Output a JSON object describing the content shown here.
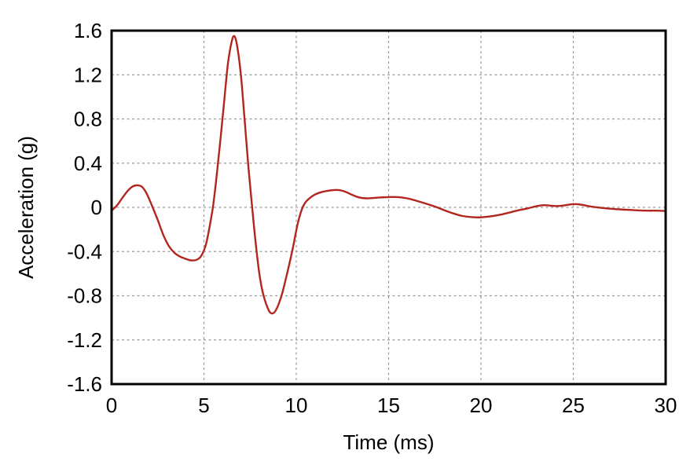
{
  "figure": {
    "background": "#ffffff",
    "frame_color": "#000000",
    "grid_color": "#999999",
    "line_color": "#b2261e"
  },
  "chart_data": {
    "type": "line",
    "title": "",
    "xlabel": "Time (ms)",
    "ylabel": "Acceleration (g)",
    "xlim": [
      0,
      30
    ],
    "ylim": [
      -1.6,
      1.6
    ],
    "grid": {
      "show": true,
      "style": "dashed",
      "color": "#999999"
    },
    "legend": {
      "show": false
    },
    "xticks": {
      "values": [
        0,
        5,
        10,
        15,
        20,
        25,
        30
      ],
      "labels": [
        "0",
        "5",
        "10",
        "15",
        "20",
        "25",
        "30"
      ]
    },
    "yticks": {
      "values": [
        -1.6,
        -1.2,
        -0.8,
        -0.4,
        0,
        0.4,
        0.8,
        1.2,
        1.6
      ],
      "labels": [
        "-1.6",
        "-1.2",
        "-0.8",
        "-0.4",
        "0",
        "0.4",
        "0.8",
        "1.2",
        "1.6"
      ]
    },
    "series": [
      {
        "name": "acceleration",
        "color": "#b2261e",
        "points": [
          [
            0,
            -0.03
          ],
          [
            0.3,
            0.02
          ],
          [
            0.6,
            0.09
          ],
          [
            0.9,
            0.155
          ],
          [
            1.15,
            0.19
          ],
          [
            1.4,
            0.2
          ],
          [
            1.65,
            0.185
          ],
          [
            1.9,
            0.125
          ],
          [
            2.2,
            0.01
          ],
          [
            2.5,
            -0.115
          ],
          [
            2.8,
            -0.25
          ],
          [
            3.1,
            -0.35
          ],
          [
            3.4,
            -0.41
          ],
          [
            3.7,
            -0.445
          ],
          [
            4.0,
            -0.465
          ],
          [
            4.3,
            -0.48
          ],
          [
            4.6,
            -0.475
          ],
          [
            4.85,
            -0.44
          ],
          [
            5.1,
            -0.34
          ],
          [
            5.3,
            -0.18
          ],
          [
            5.5,
            0.02
          ],
          [
            5.7,
            0.3
          ],
          [
            5.9,
            0.62
          ],
          [
            6.1,
            0.97
          ],
          [
            6.3,
            1.3
          ],
          [
            6.5,
            1.5
          ],
          [
            6.65,
            1.55
          ],
          [
            6.8,
            1.46
          ],
          [
            7.0,
            1.2
          ],
          [
            7.2,
            0.8
          ],
          [
            7.4,
            0.38
          ],
          [
            7.6,
            0.02
          ],
          [
            7.8,
            -0.32
          ],
          [
            8.0,
            -0.6
          ],
          [
            8.2,
            -0.78
          ],
          [
            8.45,
            -0.91
          ],
          [
            8.65,
            -0.96
          ],
          [
            8.9,
            -0.93
          ],
          [
            9.2,
            -0.8
          ],
          [
            9.5,
            -0.6
          ],
          [
            9.8,
            -0.38
          ],
          [
            10.1,
            -0.13
          ],
          [
            10.4,
            0.02
          ],
          [
            10.7,
            0.08
          ],
          [
            11.0,
            0.115
          ],
          [
            11.4,
            0.14
          ],
          [
            11.8,
            0.152
          ],
          [
            12.2,
            0.158
          ],
          [
            12.6,
            0.145
          ],
          [
            13.0,
            0.115
          ],
          [
            13.4,
            0.09
          ],
          [
            13.8,
            0.082
          ],
          [
            14.2,
            0.085
          ],
          [
            14.6,
            0.09
          ],
          [
            15.0,
            0.093
          ],
          [
            15.5,
            0.093
          ],
          [
            16.0,
            0.082
          ],
          [
            16.5,
            0.06
          ],
          [
            17.0,
            0.035
          ],
          [
            17.5,
            0.008
          ],
          [
            18.0,
            -0.025
          ],
          [
            18.5,
            -0.055
          ],
          [
            19.0,
            -0.078
          ],
          [
            19.5,
            -0.088
          ],
          [
            20.0,
            -0.09
          ],
          [
            20.5,
            -0.082
          ],
          [
            21.0,
            -0.068
          ],
          [
            21.5,
            -0.048
          ],
          [
            22.0,
            -0.028
          ],
          [
            22.5,
            -0.01
          ],
          [
            23.0,
            0.01
          ],
          [
            23.4,
            0.02
          ],
          [
            23.8,
            0.015
          ],
          [
            24.2,
            0.012
          ],
          [
            24.6,
            0.02
          ],
          [
            25.0,
            0.03
          ],
          [
            25.4,
            0.025
          ],
          [
            25.8,
            0.012
          ],
          [
            26.2,
            0.002
          ],
          [
            26.6,
            -0.006
          ],
          [
            27.0,
            -0.012
          ],
          [
            27.5,
            -0.018
          ],
          [
            28.0,
            -0.023
          ],
          [
            28.5,
            -0.027
          ],
          [
            29.0,
            -0.03
          ],
          [
            29.5,
            -0.03
          ],
          [
            30.0,
            -0.032
          ]
        ]
      }
    ]
  }
}
